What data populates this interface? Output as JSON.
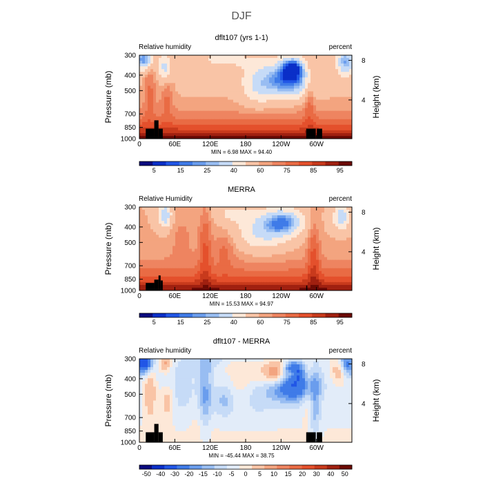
{
  "figure_title": "DJF",
  "colors": {
    "rh_scale": [
      "#0a0a7e",
      "#0a2fc8",
      "#2156e6",
      "#3f7be8",
      "#6a9ded",
      "#98bdf2",
      "#c6dbf7",
      "#fde8d8",
      "#f9c4a6",
      "#f3a47f",
      "#ee8460",
      "#e96b44",
      "#e4502c",
      "#c83a1c",
      "#a02010",
      "#6b0a04"
    ],
    "diff_scale": [
      "#0a0a7e",
      "#0a2fc8",
      "#2156e6",
      "#3f7be8",
      "#6a9ded",
      "#98bdf2",
      "#c6dbf7",
      "#e2ecf9",
      "#fde8d8",
      "#f9c4a6",
      "#f3a47f",
      "#ee8460",
      "#e96b44",
      "#e4502c",
      "#c83a1c",
      "#a02010",
      "#6b0a04"
    ],
    "orography": "#000000"
  },
  "chart_data": [
    {
      "type": "heatmap",
      "title": "dflt107 (yrs 1-1)",
      "left_label": "Relative humidity",
      "right_label": "percent",
      "ylabel": "Pressure (mb)",
      "y2label": "Height (km)",
      "x_ticks": [
        "0",
        "60E",
        "120E",
        "180",
        "120W",
        "60W"
      ],
      "y_ticks": [
        "300",
        "400",
        "500",
        "700",
        "850",
        "1000"
      ],
      "y2_ticks": [
        "8",
        "4"
      ],
      "stats": "MIN =     6.98   MAX =   94.40",
      "min": 6.98,
      "max": 94.4,
      "colorbar_labels": [
        "5",
        "15",
        "25",
        "40",
        "60",
        "75",
        "85",
        "95"
      ],
      "colorbar_levels": [
        5,
        10,
        15,
        20,
        25,
        30,
        40,
        50,
        60,
        65,
        70,
        75,
        80,
        85,
        90,
        95
      ]
    },
    {
      "type": "heatmap",
      "title": "MERRA",
      "left_label": "Relative Humidity",
      "right_label": "percent",
      "ylabel": "Pressure (mb)",
      "y2label": "Height (km)",
      "x_ticks": [
        "0",
        "60E",
        "120E",
        "180",
        "120W",
        "60W"
      ],
      "y_ticks": [
        "300",
        "400",
        "500",
        "700",
        "850",
        "1000"
      ],
      "y2_ticks": [
        "8",
        "4"
      ],
      "stats": "MIN =   15.53   MAX =   94.97",
      "min": 15.53,
      "max": 94.97,
      "colorbar_labels": [
        "5",
        "15",
        "25",
        "40",
        "60",
        "75",
        "85",
        "95"
      ],
      "colorbar_levels": [
        5,
        10,
        15,
        20,
        25,
        30,
        40,
        50,
        60,
        65,
        70,
        75,
        80,
        85,
        90,
        95
      ]
    },
    {
      "type": "heatmap",
      "title": "dflt107 - MERRA",
      "left_label": "Relative humidity",
      "right_label": "percent",
      "ylabel": "Pressure (mb)",
      "y2label": "Height (km)",
      "x_ticks": [
        "0",
        "60E",
        "120E",
        "180",
        "120W",
        "60W"
      ],
      "y_ticks": [
        "300",
        "400",
        "500",
        "700",
        "850",
        "1000"
      ],
      "y2_ticks": [
        "8",
        "4"
      ],
      "stats": "MIN =  -45.44   MAX =   38.75",
      "min": -45.44,
      "max": 38.75,
      "colorbar_labels": [
        "-50",
        "-40",
        "-30",
        "-20",
        "-15",
        "-10",
        "-5",
        "0",
        "5",
        "10",
        "15",
        "20",
        "30",
        "40",
        "50"
      ],
      "colorbar_levels": [
        -50,
        -40,
        -30,
        -20,
        -15,
        -10,
        -5,
        0,
        5,
        10,
        15,
        20,
        30,
        40,
        50
      ]
    }
  ]
}
